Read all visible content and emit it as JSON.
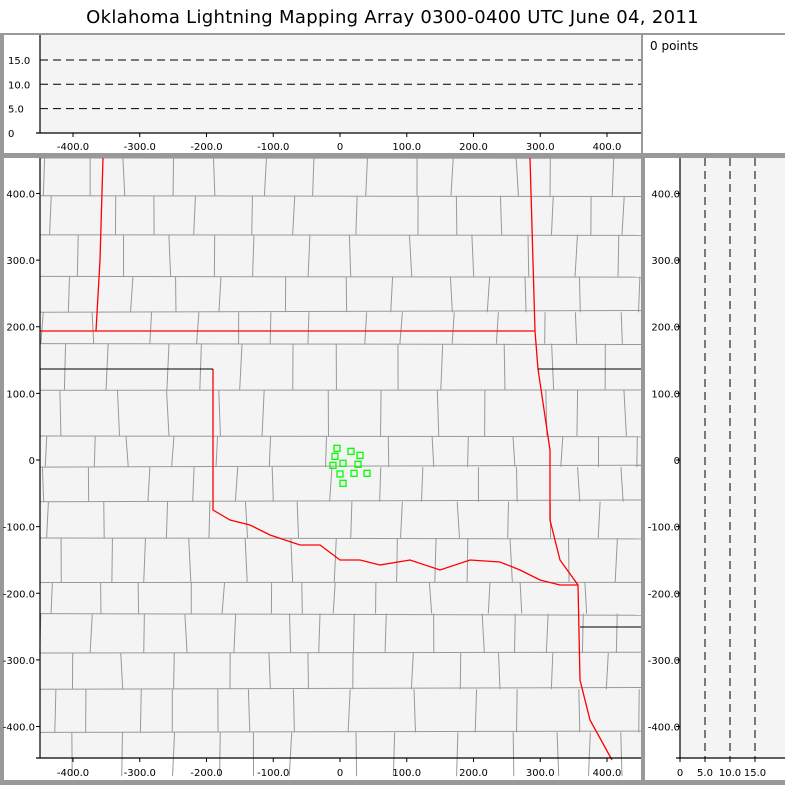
{
  "title": "Oklahoma Lightning Mapping Array   0300-0400 UTC  June 04, 2011",
  "points_label": "0 points",
  "colors": {
    "state_border": "#ff0000",
    "county_border": "#999999",
    "station": "#00ff00",
    "plot_bg": "#f4f4f4",
    "frame": "#999999"
  },
  "chart_data": [
    {
      "type": "scatter",
      "panel": "plan-view map",
      "xlim": [
        -450,
        450
      ],
      "ylim": [
        -450,
        450
      ],
      "x_ticks": [
        "-400.0",
        "-300.0",
        "-200.0",
        "-100.0",
        "0",
        "100.0",
        "200.0",
        "300.0",
        "400.0"
      ],
      "y_ticks": [
        "400.0",
        "300.0",
        "200.0",
        "100.0",
        "0",
        "-100.0",
        "-200.0",
        "-300.0",
        "-400.0"
      ],
      "series": [
        {
          "marker": "open-square",
          "color": "#00ff00",
          "x": [
            -4.5,
            16.5,
            30,
            -7.5,
            4.5,
            27,
            -10.5,
            0,
            21,
            40.5,
            4.5
          ],
          "y": [
            17.5,
            13,
            7,
            5.5,
            -5,
            -6.5,
            -8,
            -21,
            -20,
            -20,
            -35
          ]
        }
      ]
    },
    {
      "type": "scatter",
      "panel": "east-west vs altitude",
      "xlim": [
        -450,
        450
      ],
      "ylim": [
        0,
        20
      ],
      "x_ticks": [
        "-400.0",
        "-300.0",
        "-200.0",
        "-100.0",
        "0",
        "100.0",
        "200.0",
        "300.0",
        "400.0"
      ],
      "y_ticks": [
        "15.0",
        "10.0",
        "5.0",
        "0"
      ],
      "grid": "dashed at 5, 10, 15",
      "series": []
    },
    {
      "type": "scatter",
      "panel": "altitude vs north-south",
      "xlim": [
        0,
        20
      ],
      "ylim": [
        -450,
        450
      ],
      "x_ticks": [
        "0",
        "5.0",
        "10.0",
        "15.0"
      ],
      "y_ticks": [
        "400.0",
        "300.0",
        "200.0",
        "100.0",
        "0",
        "-100.0",
        "-200.0",
        "-300.0",
        "-400.0"
      ],
      "grid": "dashed at 5, 10, 15",
      "series": []
    }
  ]
}
